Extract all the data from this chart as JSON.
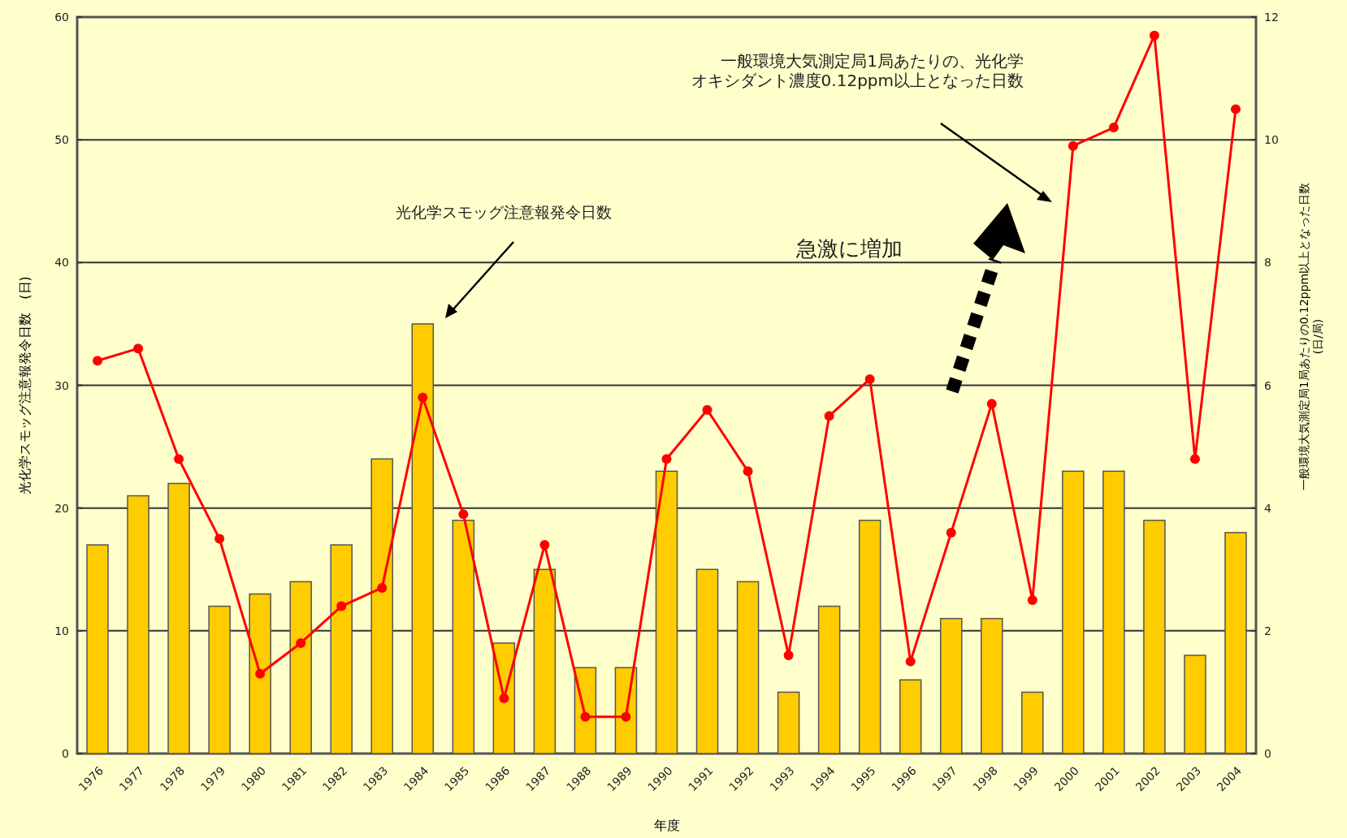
{
  "chart_data": {
    "type": "bar",
    "xlabel": "年度",
    "ylabel": "光化学スモッグ注意報発令日数　(日)",
    "y2label": "一般環境大気測定局1局あたりの0.12ppm以上となった日数(日/局)",
    "categories": [
      "1976",
      "1977",
      "1978",
      "1979",
      "1980",
      "1981",
      "1982",
      "1983",
      "1984",
      "1985",
      "1986",
      "1987",
      "1988",
      "1989",
      "1990",
      "1991",
      "1992",
      "1993",
      "1994",
      "1995",
      "1996",
      "1997",
      "1998",
      "1999",
      "2000",
      "2001",
      "2002",
      "2003",
      "2004"
    ],
    "series": [
      {
        "color": "#ffcc00",
        "values": [
          17,
          21,
          22,
          12,
          13,
          14,
          17,
          24,
          35,
          19,
          9,
          15,
          7,
          7,
          23,
          15,
          14,
          5,
          12,
          19,
          6,
          11,
          11,
          5,
          23,
          23,
          19,
          8,
          18
        ]
      },
      {
        "type": "line",
        "axis": "y2",
        "color": "#ff0000",
        "marker": "circle",
        "values": [
          6.4,
          6.6,
          4.8,
          3.5,
          1.3,
          1.8,
          2.4,
          2.7,
          5.8,
          3.9,
          0.9,
          3.4,
          0.6,
          0.6,
          4.8,
          5.6,
          4.6,
          1.6,
          5.5,
          6.1,
          1.5,
          3.6,
          5.7,
          2.5,
          9.9,
          10.2,
          11.7,
          4.8,
          10.5
        ]
      }
    ],
    "ylim": [
      0,
      60
    ],
    "yticks": [
      0,
      10,
      20,
      30,
      40,
      50,
      60
    ],
    "y2lim": [
      0,
      12
    ],
    "y2ticks": [
      0,
      2,
      4,
      6,
      8,
      10,
      12
    ],
    "grid": "y",
    "legend": false,
    "annotations": [
      "一般環境大気測定局1局あたりの、光化学オキシダント濃度0.12ppm以上となった日数",
      "光化学スモッグ注意報発令日数",
      "急激に増加"
    ]
  }
}
